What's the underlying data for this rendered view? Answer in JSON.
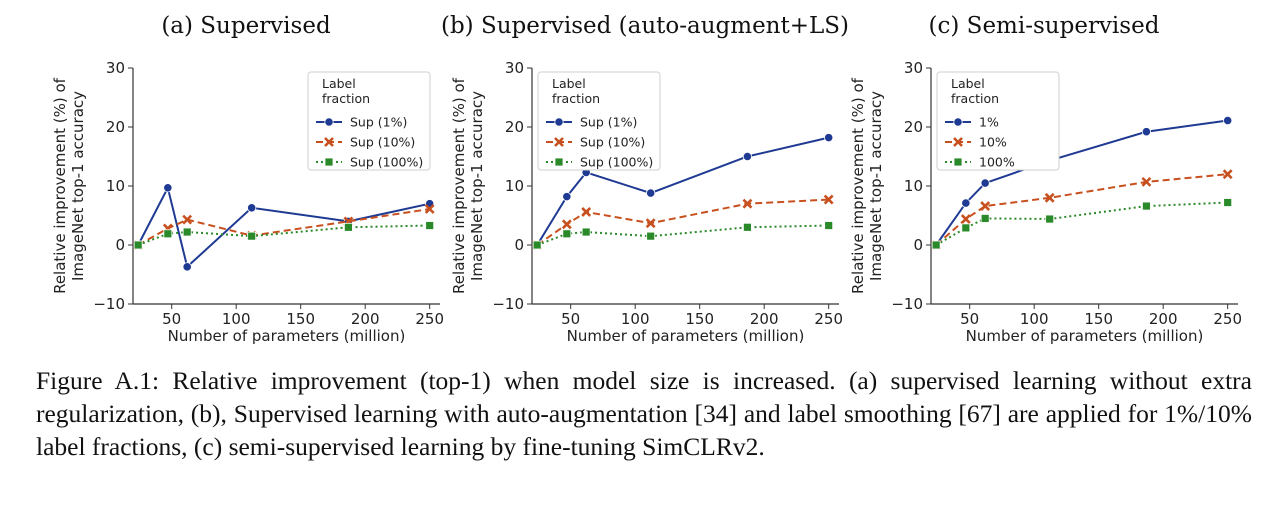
{
  "caption": "Figure A.1: Relative improvement (top-1) when model size is increased. (a) supervised learning without extra regularization, (b), Supervised learning with auto-augmentation [34] and label smoothing [67] are applied for 1%/10% label fractions, (c) semi-supervised learning by fine-tuning SimCLRv2.",
  "colors": {
    "blue": "#1f3a93",
    "orange": "#c8501e",
    "green": "#2a8a2a"
  },
  "chart_data": [
    {
      "type": "line",
      "title": "(a) Supervised",
      "xlabel": "Number of parameters (million)",
      "ylabel_lines": [
        "Relative improvement (%) of",
        "ImageNet top-1 accuracy"
      ],
      "xlim": [
        20,
        258
      ],
      "ylim": [
        -10,
        30
      ],
      "xticks": [
        50,
        100,
        150,
        200,
        250
      ],
      "yticks": [
        -10,
        0,
        10,
        20,
        30
      ],
      "legend_title_lines": [
        "Label",
        "fraction"
      ],
      "legend_position": "top-right",
      "x": [
        24,
        47,
        62,
        112,
        187,
        250
      ],
      "series": [
        {
          "name": "Sup (1%)",
          "marker": "circle",
          "linestyle": "solid",
          "color": "#1f3a93",
          "values": [
            0,
            9.7,
            -3.7,
            6.3,
            4.0,
            7.0
          ]
        },
        {
          "name": "Sup (10%)",
          "marker": "x",
          "linestyle": "dashed",
          "color": "#c8501e",
          "values": [
            0,
            2.8,
            4.3,
            1.6,
            4.0,
            6.1
          ]
        },
        {
          "name": "Sup (100%)",
          "marker": "square",
          "linestyle": "dotted",
          "color": "#2a8a2a",
          "values": [
            0,
            1.9,
            2.2,
            1.5,
            3.0,
            3.3
          ]
        }
      ]
    },
    {
      "type": "line",
      "title": "(b) Supervised (auto-augment+LS)",
      "xlabel": "Number of parameters (million)",
      "ylabel_lines": [
        "Relative improvement (%) of",
        "ImageNet top-1 accuracy"
      ],
      "xlim": [
        20,
        258
      ],
      "ylim": [
        -10,
        30
      ],
      "xticks": [
        50,
        100,
        150,
        200,
        250
      ],
      "yticks": [
        -10,
        0,
        10,
        20,
        30
      ],
      "legend_title_lines": [
        "Label",
        "fraction"
      ],
      "legend_position": "top-left",
      "x": [
        24,
        47,
        62,
        112,
        187,
        250
      ],
      "series": [
        {
          "name": "Sup (1%)",
          "marker": "circle",
          "linestyle": "solid",
          "color": "#1f3a93",
          "values": [
            0,
            8.2,
            12.3,
            8.8,
            15.0,
            18.2
          ]
        },
        {
          "name": "Sup (10%)",
          "marker": "x",
          "linestyle": "dashed",
          "color": "#c8501e",
          "values": [
            0,
            3.5,
            5.6,
            3.7,
            7.0,
            7.7
          ]
        },
        {
          "name": "Sup (100%)",
          "marker": "square",
          "linestyle": "dotted",
          "color": "#2a8a2a",
          "values": [
            0,
            1.9,
            2.2,
            1.5,
            3.0,
            3.3
          ]
        }
      ]
    },
    {
      "type": "line",
      "title": "(c) Semi-supervised",
      "xlabel": "Number of parameters (million)",
      "ylabel_lines": [
        "Relative improvement (%) of",
        "ImageNet top-1 accuracy"
      ],
      "xlim": [
        20,
        258
      ],
      "ylim": [
        -10,
        30
      ],
      "xticks": [
        50,
        100,
        150,
        200,
        250
      ],
      "yticks": [
        -10,
        0,
        10,
        20,
        30
      ],
      "legend_title_lines": [
        "Label",
        "fraction"
      ],
      "legend_position": "top-left",
      "x": [
        24,
        47,
        62,
        112,
        187,
        250
      ],
      "series": [
        {
          "name": "1%",
          "marker": "circle",
          "linestyle": "solid",
          "color": "#1f3a93",
          "values": [
            0,
            7.1,
            10.5,
            14.3,
            19.2,
            21.1
          ]
        },
        {
          "name": "10%",
          "marker": "x",
          "linestyle": "dashed",
          "color": "#c8501e",
          "values": [
            0,
            4.4,
            6.6,
            8.0,
            10.7,
            12.0
          ]
        },
        {
          "name": "100%",
          "marker": "square",
          "linestyle": "dotted",
          "color": "#2a8a2a",
          "values": [
            0,
            2.9,
            4.5,
            4.4,
            6.6,
            7.2
          ]
        }
      ]
    }
  ]
}
